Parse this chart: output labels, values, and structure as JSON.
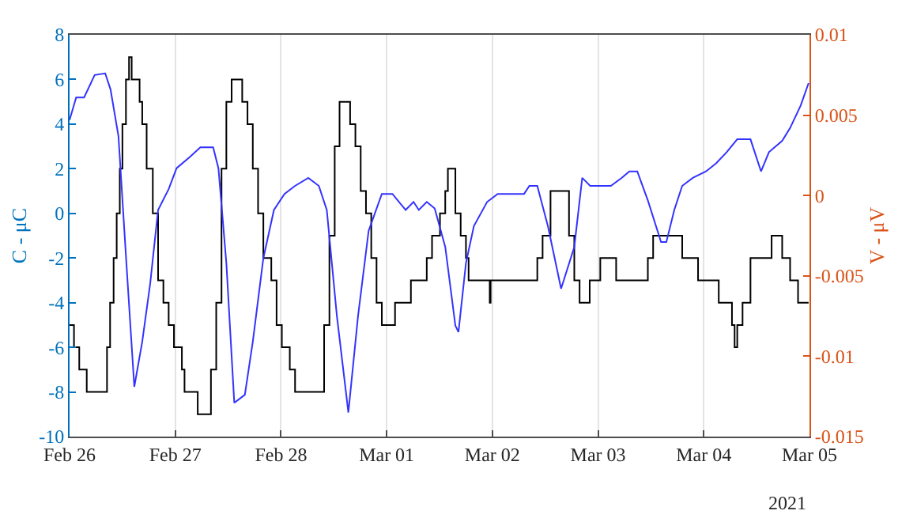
{
  "chart_data": {
    "type": "line",
    "ylabel": "C - μC",
    "y2label": "V - μV",
    "annotations": [
      "2021"
    ],
    "xlim": [
      "2021-02-26",
      "2021-03-05"
    ],
    "xticks": [
      {
        "value": "2021-02-26",
        "label": "Feb 26"
      },
      {
        "value": "2021-02-27",
        "label": "Feb 27"
      },
      {
        "value": "2021-02-28",
        "label": "Feb 28"
      },
      {
        "value": "2021-03-01",
        "label": "Mar 01"
      },
      {
        "value": "2021-03-02",
        "label": "Mar 02"
      },
      {
        "value": "2021-03-03",
        "label": "Mar 03"
      },
      {
        "value": "2021-03-04",
        "label": "Mar 04"
      },
      {
        "value": "2021-03-05",
        "label": "Mar 05"
      }
    ],
    "ylim": [
      -10,
      8
    ],
    "yticks": [
      -10,
      -8,
      -6,
      -4,
      -2,
      0,
      2,
      4,
      6,
      8
    ],
    "y2lim": [
      -0.015,
      0.01
    ],
    "y2ticks": [
      -0.015,
      -0.01,
      -0.005,
      0,
      0.005,
      0.01
    ],
    "grid": "x",
    "series": [
      {
        "type": "step",
        "color": "#000000",
        "x": [
          "2021-02-26T00:00",
          "2021-02-26T01:00",
          "2021-02-26T02:12",
          "2021-02-26T03:54",
          "2021-02-26T08:06",
          "2021-02-26T08:30",
          "2021-02-26T09:12",
          "2021-02-26T10:00",
          "2021-02-26T10:42",
          "2021-02-26T11:24",
          "2021-02-26T12:00",
          "2021-02-26T12:48",
          "2021-02-26T13:30",
          "2021-02-26T14:06",
          "2021-02-26T15:54",
          "2021-02-26T16:30",
          "2021-02-26T17:30",
          "2021-02-26T18:54",
          "2021-02-26T20:06",
          "2021-02-26T21:18",
          "2021-02-26T22:30",
          "2021-02-26T23:42",
          "2021-02-27T01:30",
          "2021-02-27T02:06",
          "2021-02-27T05:06",
          "2021-02-27T07:30",
          "2021-02-27T08:06",
          "2021-02-27T09:18",
          "2021-02-27T10:30",
          "2021-02-27T11:36",
          "2021-02-27T12:48",
          "2021-02-27T15:12",
          "2021-02-27T16:24",
          "2021-02-27T17:36",
          "2021-02-27T18:48",
          "2021-02-27T20:00",
          "2021-02-27T21:48",
          "2021-02-27T23:00",
          "2021-02-28T00:12",
          "2021-02-28T02:00",
          "2021-02-28T03:12",
          "2021-02-28T08:36",
          "2021-02-28T09:48",
          "2021-02-28T11:00",
          "2021-02-28T12:12",
          "2021-02-28T13:18",
          "2021-02-28T15:42",
          "2021-02-28T16:54",
          "2021-02-28T18:06",
          "2021-02-28T19:18",
          "2021-02-28T20:30",
          "2021-02-28T21:42",
          "2021-02-28T22:54",
          "2021-03-01T01:18",
          "2021-03-01T01:54",
          "2021-03-01T04:54",
          "2021-03-01T05:30",
          "2021-03-01T07:54",
          "2021-03-01T09:06",
          "2021-03-01T10:18",
          "2021-03-01T12:06",
          "2021-03-01T13:18",
          "2021-03-01T13:54",
          "2021-03-01T14:48",
          "2021-03-01T15:36",
          "2021-03-01T16:48",
          "2021-03-01T18:00",
          "2021-03-01T18:36",
          "2021-03-01T23:24",
          "2021-03-01T23:36",
          "2021-03-02T09:36",
          "2021-03-02T10:12",
          "2021-03-02T11:24",
          "2021-03-02T13:12",
          "2021-03-02T16:12",
          "2021-03-02T17:24",
          "2021-03-02T18:36",
          "2021-03-02T19:48",
          "2021-03-02T21:30",
          "2021-03-02T22:06",
          "2021-03-03T00:30",
          "2021-03-03T03:30",
          "2021-03-03T04:06",
          "2021-03-03T10:06",
          "2021-03-03T11:18",
          "2021-03-03T12:30",
          "2021-03-03T18:30",
          "2021-03-03T19:06",
          "2021-03-03T22:06",
          "2021-03-03T22:42",
          "2021-03-04T02:18",
          "2021-03-04T03:24",
          "2021-03-04T05:12",
          "2021-03-04T06:24",
          "2021-03-04T07:00",
          "2021-03-04T07:36",
          "2021-03-04T08:48",
          "2021-03-04T10:36",
          "2021-03-04T14:48",
          "2021-03-04T15:24",
          "2021-03-04T17:12",
          "2021-03-04T17:48",
          "2021-03-04T19:36",
          "2021-03-04T21:24",
          "2021-03-04T23:48"
        ],
        "values": [
          -5,
          -6,
          -7,
          -8,
          -8,
          -6,
          -4,
          -2,
          0,
          2,
          4,
          6,
          7,
          6,
          5,
          4,
          2,
          0,
          -3,
          -4,
          -5,
          -6,
          -7,
          -8,
          -9,
          -9,
          -7,
          -4,
          2,
          5,
          6,
          5,
          4,
          2,
          0,
          -2,
          -3,
          -5,
          -6,
          -7,
          -8,
          -8,
          -5,
          -1,
          3,
          5,
          4,
          3,
          1,
          0,
          -2,
          -4,
          -5,
          -5,
          -4,
          -4,
          -3,
          -3,
          -2,
          -1,
          0,
          1,
          2,
          2,
          0,
          -1,
          -2,
          -3,
          -4,
          -3,
          -3,
          -2,
          -1,
          1,
          1,
          -1,
          -3,
          -4,
          -4,
          -3,
          -2,
          -2,
          -3,
          -3,
          -2,
          -1,
          -1,
          -2,
          -2,
          -3,
          -3,
          -4,
          -4,
          -5,
          -6,
          -5,
          -4,
          -2,
          -2,
          -1,
          -1,
          -2,
          -3,
          -4,
          -4
        ]
      },
      {
        "type": "line",
        "color": "#3333ff",
        "axis": "y2",
        "x": [
          "2021-02-26T00:00",
          "2021-02-26T01:30",
          "2021-02-26T03:18",
          "2021-02-26T05:42",
          "2021-02-26T08:06",
          "2021-02-26T09:18",
          "2021-02-26T11:06",
          "2021-02-26T12:54",
          "2021-02-26T14:42",
          "2021-02-26T16:30",
          "2021-02-26T18:18",
          "2021-02-26T20:06",
          "2021-02-26T22:30",
          "2021-02-27T00:18",
          "2021-02-27T03:18",
          "2021-02-27T05:42",
          "2021-02-27T08:36",
          "2021-02-27T09:48",
          "2021-02-27T11:36",
          "2021-02-27T13:24",
          "2021-02-27T15:48",
          "2021-02-27T17:36",
          "2021-02-27T20:00",
          "2021-02-27T22:24",
          "2021-02-28T00:48",
          "2021-02-28T03:12",
          "2021-02-28T06:12",
          "2021-02-28T08:36",
          "2021-02-28T10:24",
          "2021-02-28T12:42",
          "2021-02-28T15:18",
          "2021-02-28T17:30",
          "2021-02-28T19:54",
          "2021-02-28T22:54",
          "2021-03-01T01:18",
          "2021-03-01T04:18",
          "2021-03-01T06:06",
          "2021-03-01T07:18",
          "2021-03-01T09:06",
          "2021-03-01T10:54",
          "2021-03-01T13:18",
          "2021-03-01T15:36",
          "2021-03-01T16:18",
          "2021-03-01T18:00",
          "2021-03-01T19:48",
          "2021-03-01T22:48",
          "2021-03-02T01:12",
          "2021-03-02T07:12",
          "2021-03-02T08:24",
          "2021-03-02T10:12",
          "2021-03-02T12:36",
          "2021-03-02T15:36",
          "2021-03-02T18:36",
          "2021-03-02T20:24",
          "2021-03-02T22:12",
          "2021-03-03T02:54",
          "2021-03-03T05:24",
          "2021-03-03T07:06",
          "2021-03-03T08:54",
          "2021-03-03T11:18",
          "2021-03-03T14:18",
          "2021-03-03T15:30",
          "2021-03-03T17:18",
          "2021-03-03T19:06",
          "2021-03-03T21:30",
          "2021-03-04T00:30",
          "2021-03-04T02:48",
          "2021-03-04T05:12",
          "2021-03-04T07:36",
          "2021-03-04T10:36",
          "2021-03-04T13:00",
          "2021-03-04T14:48",
          "2021-03-04T17:48",
          "2021-03-04T19:36",
          "2021-03-04T22:00",
          "2021-03-04T23:48"
        ],
        "values": [
          0.0047,
          0.0061,
          0.0061,
          0.0075,
          0.0076,
          0.0066,
          0.0037,
          -0.0042,
          -0.0119,
          -0.0091,
          -0.0055,
          -0.0009,
          0.0004,
          0.0017,
          0.0024,
          0.003,
          0.003,
          0.0017,
          -0.0042,
          -0.0129,
          -0.0124,
          -0.0091,
          -0.0039,
          -0.0009,
          0.0001,
          0.0006,
          0.0011,
          0.0006,
          -0.0009,
          -0.0075,
          -0.0135,
          -0.0075,
          -0.0022,
          0.0001,
          0.0001,
          -0.0009,
          -0.0004,
          -0.0009,
          -0.0004,
          -0.0008,
          -0.0032,
          -0.0081,
          -0.0085,
          -0.0042,
          -0.0019,
          -0.0004,
          0.0001,
          0.0001,
          0.0006,
          0.0006,
          -0.0019,
          -0.0058,
          -0.0032,
          0.0011,
          0.0006,
          0.0006,
          0.0011,
          0.0015,
          0.0015,
          -0.0003,
          -0.0029,
          -0.0029,
          -0.0009,
          0.0006,
          0.0011,
          0.0015,
          0.002,
          0.0027,
          0.0035,
          0.0035,
          0.0015,
          0.0027,
          0.0034,
          0.0042,
          0.0056,
          0.007
        ]
      }
    ]
  }
}
